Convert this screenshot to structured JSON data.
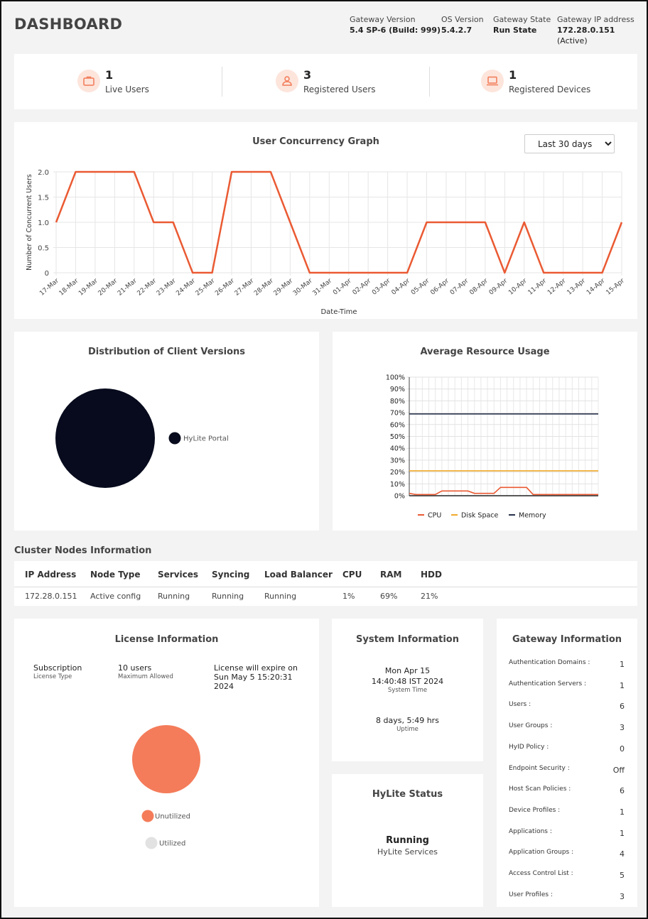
{
  "header": {
    "title": "DASHBOARD",
    "gateway_version": {
      "label": "Gateway Version",
      "value": "5.4 SP-6 (Build: 999)"
    },
    "os_version": {
      "label": "OS Version",
      "value": "5.4.2.7"
    },
    "gateway_state": {
      "label": "Gateway State",
      "value": "Run State"
    },
    "gateway_ip": {
      "label": "Gateway IP address",
      "value": "172.28.0.151",
      "status": "(Active)"
    }
  },
  "stats": [
    {
      "value": "1",
      "label": "Live Users",
      "icon": "briefcase-icon"
    },
    {
      "value": "3",
      "label": "Registered Users",
      "icon": "user-icon"
    },
    {
      "value": "1",
      "label": "Registered Devices",
      "icon": "laptop-icon"
    }
  ],
  "concurrency": {
    "title": "User Concurrency Graph",
    "range_selected": "Last 30 days",
    "chart_data": {
      "type": "line",
      "xlabel": "Date-Time",
      "ylabel": "Number of Concurrent Users",
      "ylim": [
        0,
        2
      ],
      "yticks": [
        "0",
        "0.5",
        "1.0",
        "1.5",
        "2.0"
      ],
      "categories": [
        "17-Mar",
        "18-Mar",
        "19-Mar",
        "20-Mar",
        "21-Mar",
        "22-Mar",
        "23-Mar",
        "24-Mar",
        "25-Mar",
        "26-Mar",
        "27-Mar",
        "28-Mar",
        "29-Mar",
        "30-Mar",
        "31-Mar",
        "01-Apr",
        "02-Apr",
        "03-Apr",
        "04-Apr",
        "05-Apr",
        "06-Apr",
        "07-Apr",
        "08-Apr",
        "09-Apr",
        "10-Apr",
        "11-Apr",
        "12-Apr",
        "13-Apr",
        "14-Apr",
        "15-Apr"
      ],
      "values": [
        1,
        2,
        2,
        2,
        2,
        1,
        1,
        0,
        0,
        2,
        2,
        2,
        1,
        0,
        0,
        0,
        0,
        0,
        0,
        1,
        1,
        1,
        1,
        0,
        1,
        0,
        0,
        0,
        0,
        1
      ],
      "color": "#ea5a33",
      "grid": true
    }
  },
  "client_versions": {
    "title": "Distribution of Client Versions",
    "chart_data": {
      "type": "pie",
      "categories": [
        "HyLite Portal"
      ],
      "values": [
        100
      ],
      "colors": [
        "#070b1d"
      ]
    }
  },
  "resource_usage": {
    "title": "Average Resource Usage",
    "chart_data": {
      "type": "line",
      "ylim": [
        0,
        100
      ],
      "yticks": [
        "0%",
        "10%",
        "20%",
        "30%",
        "40%",
        "50%",
        "60%",
        "70%",
        "80%",
        "90%",
        "100%"
      ],
      "n_points": 30,
      "series": [
        {
          "name": "CPU",
          "color": "#ea5a33",
          "values": [
            2,
            1,
            1,
            1,
            1,
            4,
            4,
            4,
            4,
            4,
            2,
            2,
            2,
            2,
            7,
            7,
            7,
            7,
            7,
            1,
            1,
            1,
            1,
            1,
            1,
            1,
            1,
            1,
            1,
            1
          ]
        },
        {
          "name": "Disk Space",
          "color": "#f0a92a",
          "values": [
            21,
            21,
            21,
            21,
            21,
            21,
            21,
            21,
            21,
            21,
            21,
            21,
            21,
            21,
            21,
            21,
            21,
            21,
            21,
            21,
            21,
            21,
            21,
            21,
            21,
            21,
            21,
            21,
            21,
            21
          ]
        },
        {
          "name": "Memory",
          "color": "#27324a",
          "values": [
            69,
            69,
            69,
            69,
            69,
            69,
            69,
            69,
            69,
            69,
            69,
            69,
            69,
            69,
            69,
            69,
            69,
            69,
            69,
            69,
            69,
            69,
            69,
            69,
            69,
            69,
            69,
            69,
            69,
            69
          ]
        }
      ],
      "legend": "bottom"
    }
  },
  "cluster": {
    "title": "Cluster Nodes Information",
    "columns": [
      "IP Address",
      "Node Type",
      "Services",
      "Syncing",
      "Load Balancer",
      "CPU",
      "RAM",
      "HDD"
    ],
    "rows": [
      [
        "172.28.0.151",
        "Active config",
        "Running",
        "Running",
        "Running",
        "1%",
        "69%",
        "21%"
      ]
    ]
  },
  "license": {
    "title": "License Information",
    "subscription": {
      "value": "Subscription",
      "label": "License Type"
    },
    "users": {
      "value": "10 users",
      "label": "Maximum Allowed"
    },
    "expiry": {
      "line1": "License will expire on",
      "line2": "Sun May 5 15:20:31",
      "line3": "2024"
    },
    "chart_data": {
      "type": "pie",
      "categories": [
        "Unutilized",
        "Utilized"
      ],
      "values": [
        100,
        0
      ],
      "colors": [
        "#f47c5a",
        "#e2e2e2"
      ]
    }
  },
  "system": {
    "title": "System Information",
    "date": "Mon Apr 15",
    "time": "14:40:48 IST 2024",
    "time_label": "System Time",
    "uptime": "8 days, 5:49 hrs",
    "uptime_label": "Uptime"
  },
  "hylite": {
    "title": "HyLite Status",
    "status": "Running",
    "label": "HyLite Services"
  },
  "gateway": {
    "title": "Gateway Information",
    "items": [
      {
        "label": "Authentication Domains :",
        "value": "1"
      },
      {
        "label": "Authentication Servers :",
        "value": "1"
      },
      {
        "label": "Users :",
        "value": "6"
      },
      {
        "label": "User Groups :",
        "value": "3"
      },
      {
        "label": "HyID Policy :",
        "value": "0"
      },
      {
        "label": "Endpoint Security :",
        "value": "Off"
      },
      {
        "label": "Host Scan Policies :",
        "value": "6"
      },
      {
        "label": "Device Profiles :",
        "value": "1"
      },
      {
        "label": "Applications :",
        "value": "1"
      },
      {
        "label": "Application Groups :",
        "value": "4"
      },
      {
        "label": "Access Control List :",
        "value": "5"
      },
      {
        "label": "User Profiles :",
        "value": "3"
      }
    ]
  }
}
